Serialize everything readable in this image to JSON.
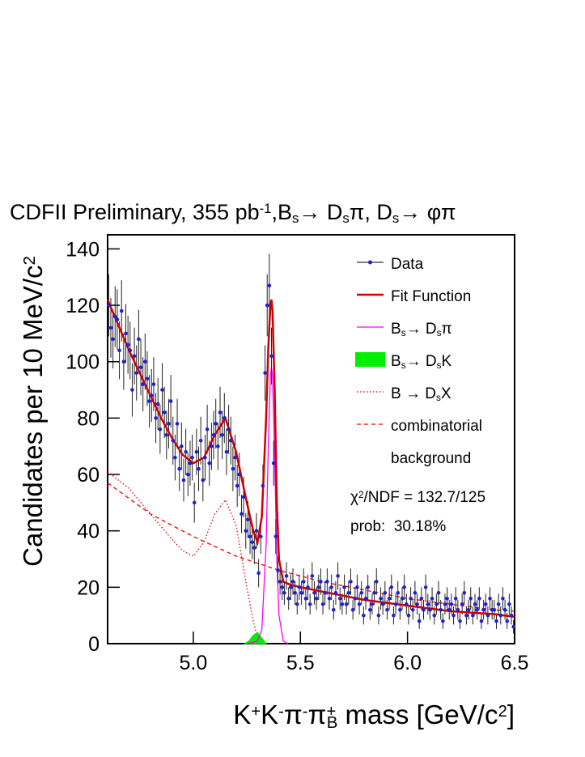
{
  "chart_data": {
    "type": "scatter",
    "title_parts": [
      {
        "text": "CDFII Preliminary, 355 pb"
      },
      {
        "text": "-1",
        "shift": "sup"
      },
      {
        "text": ",B"
      },
      {
        "text": "s",
        "shift": "sub"
      },
      {
        "text": "→ D"
      },
      {
        "text": "s",
        "shift": "sub"
      },
      {
        "text": "π, D"
      },
      {
        "text": "s",
        "shift": "sub"
      },
      {
        "text": "→ φπ"
      }
    ],
    "x_label_parts": [
      {
        "text": "K"
      },
      {
        "text": "+",
        "shift": "sup"
      },
      {
        "text": "K"
      },
      {
        "text": "-",
        "shift": "sup"
      },
      {
        "text": "π"
      },
      {
        "text": "-",
        "shift": "sup"
      },
      {
        "text": "π"
      },
      {
        "text": "+",
        "shift": "sup"
      },
      {
        "text": "B",
        "shift": "sub"
      },
      {
        "text": " mass [GeV/c"
      },
      {
        "text": "2",
        "shift": "sup"
      },
      {
        "text": "]"
      }
    ],
    "y_label_parts": [
      {
        "text": "Candidates per 10 MeV/c"
      },
      {
        "text": "2",
        "shift": "sup"
      }
    ],
    "xlim": [
      4.6,
      6.5
    ],
    "ylim": [
      0,
      145
    ],
    "xticks": [
      {
        "value": 5,
        "label": "5.0"
      },
      5.5,
      {
        "value": 6,
        "label": "6.0"
      },
      6.5
    ],
    "yticks": [
      0,
      20,
      40,
      60,
      80,
      100,
      120,
      140
    ],
    "data": {
      "legend": [
        [
          {
            "text": "Data"
          }
        ]
      ],
      "color": "#1f1fd6",
      "x": [
        4.605,
        4.615,
        4.625,
        4.635,
        4.645,
        4.655,
        4.665,
        4.675,
        4.685,
        4.695,
        4.705,
        4.715,
        4.725,
        4.735,
        4.745,
        4.755,
        4.765,
        4.775,
        4.785,
        4.795,
        4.805,
        4.815,
        4.825,
        4.835,
        4.845,
        4.855,
        4.865,
        4.875,
        4.885,
        4.895,
        4.905,
        4.915,
        4.925,
        4.935,
        4.945,
        4.955,
        4.965,
        4.975,
        4.985,
        4.995,
        5.005,
        5.015,
        5.025,
        5.035,
        5.045,
        5.055,
        5.065,
        5.075,
        5.085,
        5.095,
        5.105,
        5.115,
        5.125,
        5.135,
        5.145,
        5.155,
        5.165,
        5.175,
        5.185,
        5.195,
        5.205,
        5.215,
        5.225,
        5.235,
        5.245,
        5.255,
        5.265,
        5.275,
        5.285,
        5.295,
        5.305,
        5.315,
        5.325,
        5.335,
        5.345,
        5.355,
        5.365,
        5.375,
        5.385,
        5.395,
        5.405,
        5.415,
        5.425,
        5.435,
        5.445,
        5.455,
        5.465,
        5.475,
        5.485,
        5.495,
        5.505,
        5.515,
        5.525,
        5.535,
        5.545,
        5.555,
        5.565,
        5.575,
        5.585,
        5.595,
        5.605,
        5.615,
        5.625,
        5.635,
        5.645,
        5.655,
        5.665,
        5.675,
        5.685,
        5.695,
        5.705,
        5.715,
        5.725,
        5.735,
        5.745,
        5.755,
        5.765,
        5.775,
        5.785,
        5.795,
        5.805,
        5.815,
        5.825,
        5.835,
        5.845,
        5.855,
        5.865,
        5.875,
        5.885,
        5.895,
        5.905,
        5.915,
        5.925,
        5.935,
        5.945,
        5.955,
        5.965,
        5.975,
        5.985,
        5.995,
        6.005,
        6.015,
        6.025,
        6.035,
        6.045,
        6.055,
        6.065,
        6.075,
        6.085,
        6.095,
        6.105,
        6.115,
        6.125,
        6.135,
        6.145,
        6.155,
        6.165,
        6.175,
        6.185,
        6.195,
        6.205,
        6.215,
        6.225,
        6.235,
        6.245,
        6.255,
        6.265,
        6.275,
        6.285,
        6.295,
        6.305,
        6.315,
        6.325,
        6.335,
        6.345,
        6.355,
        6.365,
        6.375,
        6.385,
        6.395,
        6.405,
        6.415,
        6.425,
        6.435,
        6.445,
        6.455,
        6.465,
        6.475,
        6.485,
        6.495
      ],
      "values": [
        120,
        112,
        108,
        116,
        115,
        104,
        118,
        100,
        110,
        106,
        104,
        90,
        102,
        96,
        108,
        98,
        92,
        100,
        94,
        86,
        88,
        92,
        80,
        85,
        76,
        90,
        82,
        74,
        78,
        86,
        72,
        66,
        78,
        62,
        70,
        58,
        68,
        60,
        64,
        66,
        50,
        68,
        62,
        72,
        58,
        66,
        76,
        64,
        70,
        74,
        78,
        70,
        82,
        74,
        80,
        68,
        76,
        72,
        62,
        66,
        56,
        60,
        46,
        52,
        40,
        44,
        38,
        36,
        34,
        40,
        25,
        38,
        56,
        96,
        120,
        127,
        102,
        64,
        38,
        26,
        22,
        20,
        18,
        24,
        16,
        20,
        22,
        18,
        14,
        20,
        18,
        22,
        16,
        20,
        14,
        24,
        18,
        16,
        20,
        22,
        14,
        18,
        22,
        16,
        20,
        12,
        18,
        24,
        16,
        14,
        20,
        14,
        18,
        22,
        12,
        16,
        20,
        14,
        18,
        10,
        16,
        20,
        12,
        14,
        18,
        22,
        10,
        16,
        14,
        18,
        12,
        16,
        20,
        10,
        14,
        18,
        12,
        16,
        20,
        14,
        10,
        16,
        12,
        18,
        14,
        8,
        16,
        12,
        20,
        14,
        12,
        16,
        10,
        14,
        18,
        12,
        8,
        14,
        16,
        12,
        14,
        10,
        16,
        12,
        8,
        14,
        18,
        10,
        12,
        16,
        10,
        14,
        12,
        16,
        8,
        12,
        14,
        10,
        16,
        12,
        12,
        8,
        14,
        10,
        16,
        12,
        8,
        14,
        10,
        6
      ],
      "errors": [
        11,
        10.6,
        10.4,
        10.8,
        10.7,
        10.2,
        10.9,
        10,
        10.5,
        10.3,
        10.2,
        9.5,
        10.1,
        9.8,
        10.4,
        9.9,
        9.6,
        10,
        9.7,
        9.3,
        9.4,
        9.6,
        8.9,
        9.2,
        8.7,
        9.5,
        9.1,
        8.6,
        8.8,
        9.3,
        8.5,
        8.1,
        8.8,
        7.9,
        8.4,
        7.6,
        8.2,
        7.7,
        8,
        8.1,
        7.1,
        8.2,
        7.9,
        8.5,
        7.6,
        8.1,
        8.7,
        8,
        8.4,
        8.6,
        8.8,
        8.4,
        9.1,
        8.6,
        8.9,
        8.2,
        8.7,
        8.5,
        7.9,
        8.1,
        7.5,
        7.7,
        6.8,
        7.2,
        6.3,
        6.6,
        6.2,
        6,
        5.8,
        6.3,
        5,
        6.2,
        7.5,
        9.8,
        11,
        11.3,
        10.1,
        8,
        6.2,
        5.1,
        4.7,
        4.5,
        4.2,
        4.9,
        4,
        4.5,
        4.7,
        4.2,
        3.7,
        4.5,
        4.2,
        4.7,
        4,
        4.5,
        3.7,
        4.9,
        4.2,
        4,
        4.5,
        4.7,
        3.7,
        4.2,
        4.7,
        4,
        4.5,
        3.5,
        4.2,
        4.9,
        4,
        3.7,
        4.5,
        3.7,
        4.2,
        4.7,
        3.5,
        4,
        4.5,
        3.7,
        4.2,
        3.2,
        4,
        4.5,
        3.5,
        3.7,
        4.2,
        4.7,
        3.2,
        4,
        3.7,
        4.2,
        3.5,
        4,
        4.5,
        3.2,
        3.7,
        4.2,
        3.5,
        4,
        4.5,
        3.7,
        3.2,
        4,
        3.5,
        4.2,
        3.7,
        2.8,
        4,
        3.5,
        4.5,
        3.7,
        3.5,
        4,
        3.2,
        3.7,
        4.2,
        3.5,
        2.8,
        3.7,
        4,
        3.5,
        3.7,
        3.2,
        4,
        3.5,
        2.8,
        3.7,
        4.2,
        3.2,
        3.5,
        4,
        3.2,
        3.7,
        3.5,
        4,
        2.8,
        3.5,
        3.7,
        3.2,
        4,
        3.5,
        3.5,
        2.8,
        3.7,
        3.2,
        4,
        3.5,
        2.8,
        3.7,
        3.2,
        2.4
      ]
    },
    "curves": [
      {
        "legend": [
          [
            {
              "text": "Fit Function"
            }
          ]
        ],
        "color": "#cc0000",
        "style": "solid",
        "x": [
          4.6,
          4.65,
          4.7,
          4.75,
          4.8,
          4.85,
          4.9,
          4.95,
          5.0,
          5.05,
          5.1,
          5.15,
          5.2,
          5.25,
          5.28,
          5.3,
          5.32,
          5.34,
          5.35,
          5.36,
          5.365,
          5.37,
          5.38,
          5.39,
          5.4,
          5.42,
          5.45,
          5.5,
          5.6,
          5.7,
          5.8,
          5.9,
          6.0,
          6.1,
          6.2,
          6.3,
          6.4,
          6.5
        ],
        "values": [
          122,
          113,
          104,
          96,
          88,
          80,
          73,
          67,
          64,
          66,
          74,
          80,
          68,
          50,
          40,
          36,
          45,
          80,
          105,
          120,
          122,
          118,
          90,
          50,
          30,
          22,
          21,
          20,
          18.5,
          17,
          15.5,
          14.5,
          13.5,
          12.5,
          11.5,
          11,
          10.5,
          9.5
        ]
      },
      {
        "legend": [
          [
            {
              "text": "B"
            },
            {
              "text": "s",
              "shift": "sub"
            },
            {
              "text": "→ D"
            },
            {
              "text": "s",
              "shift": "sub"
            },
            {
              "text": "π"
            }
          ]
        ],
        "color": "#ff00ff",
        "style": "thin",
        "x": [
          5.25,
          5.28,
          5.3,
          5.32,
          5.34,
          5.35,
          5.36,
          5.365,
          5.37,
          5.38,
          5.39,
          5.4,
          5.42,
          5.44
        ],
        "values": [
          0,
          0.5,
          1,
          5,
          35,
          70,
          95,
          98,
          95,
          65,
          30,
          10,
          1,
          0
        ]
      },
      {
        "legend": [
          [
            {
              "text": "B"
            },
            {
              "text": "s",
              "shift": "sub"
            },
            {
              "text": "→ D"
            },
            {
              "text": "s",
              "shift": "sub"
            },
            {
              "text": "K"
            }
          ]
        ],
        "color": "#00ee00",
        "style": "fill",
        "x": [
          5.24,
          5.26,
          5.28,
          5.3,
          5.32,
          5.34
        ],
        "values": [
          0,
          1,
          3,
          4,
          2,
          0
        ]
      },
      {
        "legend": [
          [
            {
              "text": "B → D"
            },
            {
              "text": "s",
              "shift": "sub"
            },
            {
              "text": "X"
            }
          ]
        ],
        "color": "#dd0000",
        "style": "dotted",
        "x": [
          4.6,
          4.7,
          4.8,
          4.9,
          4.95,
          5.0,
          5.05,
          5.1,
          5.15,
          5.2,
          5.25,
          5.28,
          5.3
        ],
        "values": [
          61,
          55,
          46,
          37,
          33,
          31,
          36,
          46,
          51,
          42,
          20,
          8,
          2
        ]
      },
      {
        "legend": [
          [
            {
              "text": "combinatorial"
            }
          ],
          [
            {
              "text": "background"
            }
          ]
        ],
        "color": "#ee0000",
        "style": "dashed",
        "x": [
          4.6,
          4.8,
          5.0,
          5.2,
          5.4,
          5.6,
          5.8,
          6.0,
          6.2,
          6.4,
          6.5
        ],
        "values": [
          57,
          46,
          38,
          31,
          26,
          22,
          19,
          16,
          14,
          12,
          11.5
        ]
      }
    ],
    "annotations": [
      [
        {
          "text": "χ"
        },
        {
          "text": "2",
          "shift": "sup"
        },
        {
          "text": "/NDF = 132.7/125"
        }
      ],
      [
        {
          "text": "prob:  30.18%"
        }
      ]
    ]
  }
}
